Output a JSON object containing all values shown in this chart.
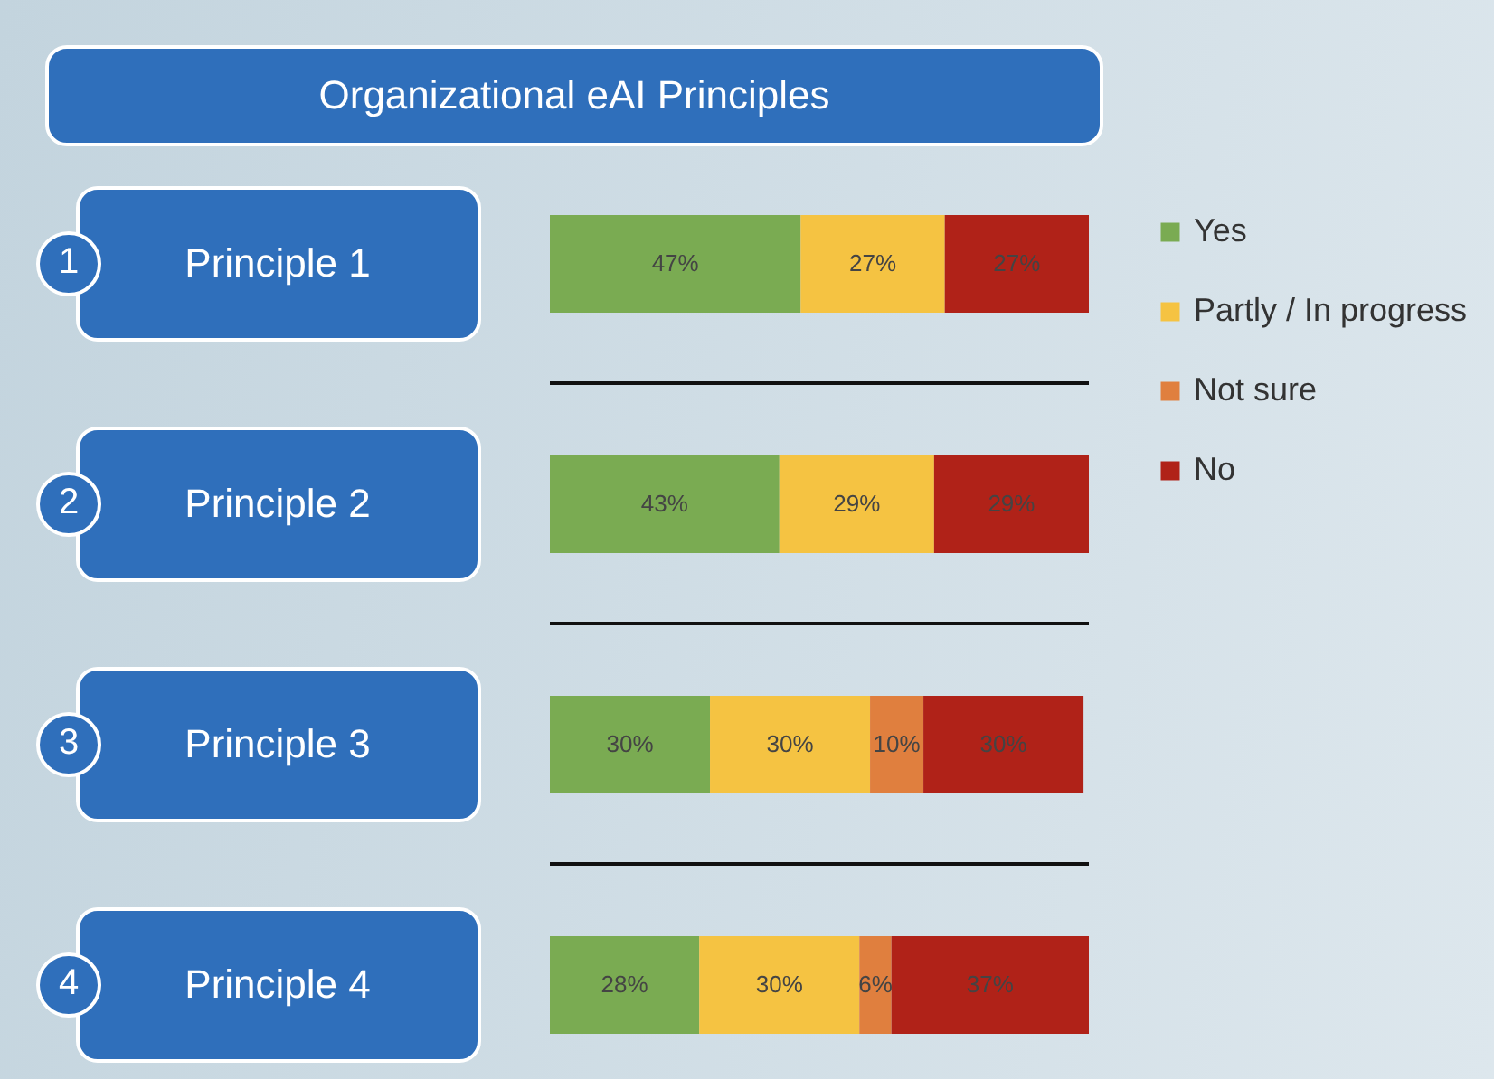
{
  "chart_data": {
    "type": "bar",
    "orientation": "horizontal",
    "stacked": true,
    "title": "Organizational eAI Principles",
    "categories": [
      "Principle 1",
      "Principle 2",
      "Principle 3",
      "Principle 4"
    ],
    "annotations": [
      "1",
      "2",
      "3",
      "4"
    ],
    "series": [
      {
        "name": "Yes",
        "color": "#7aab52",
        "values": [
          47,
          43,
          30,
          28
        ],
        "value_labels": [
          "47%",
          "43%",
          "30%",
          "28%"
        ]
      },
      {
        "name": "Partly / In progress",
        "color": "#f5c342",
        "values": [
          27,
          29,
          30,
          30
        ],
        "value_labels": [
          "27%",
          "29%",
          "30%",
          "30%"
        ]
      },
      {
        "name": "Not sure",
        "color": "#e07f3e",
        "values": [
          null,
          null,
          10,
          6
        ],
        "value_labels": [
          null,
          null,
          "10%",
          "6%"
        ]
      },
      {
        "name": "No",
        "color": "#b02218",
        "values": [
          27,
          29,
          30,
          37
        ],
        "value_labels": [
          "27%",
          "29%",
          "30%",
          "37%"
        ]
      }
    ],
    "legend": "right"
  }
}
